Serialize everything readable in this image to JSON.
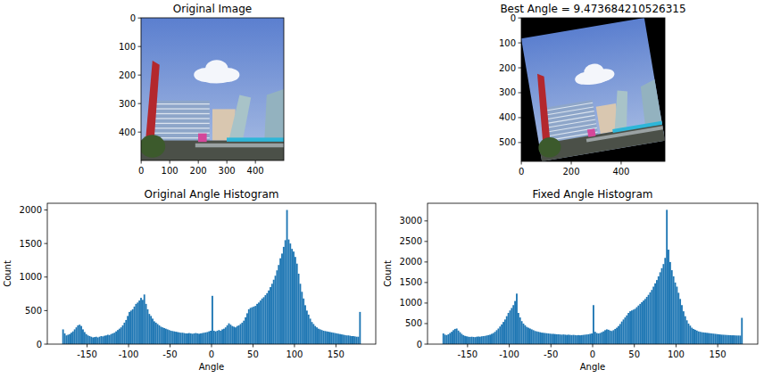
{
  "chart_data": [
    {
      "type": "image",
      "title": "Original Image",
      "xlim": [
        -0.5,
        499.5
      ],
      "ylim": [
        499.5,
        -0.5
      ],
      "xticks": [
        0,
        100,
        200,
        300,
        400
      ],
      "yticks": [
        0,
        100,
        200,
        300,
        400
      ]
    },
    {
      "type": "image",
      "title": "Best Angle = 9.473684210526315",
      "xlim": [
        -0.5,
        575.5
      ],
      "ylim": [
        575.5,
        -0.5
      ],
      "xticks": [
        0,
        200,
        400
      ],
      "yticks": [
        0,
        100,
        200,
        300,
        400,
        500
      ]
    },
    {
      "type": "histogram",
      "title": "Original Angle Histogram",
      "xlabel": "Angle",
      "ylabel": "Count",
      "color": "#1f77b4",
      "xlim": [
        -198,
        198
      ],
      "ylim": [
        0,
        2100
      ],
      "xticks": [
        -150,
        -100,
        -50,
        0,
        50,
        100,
        150
      ],
      "yticks": [
        0,
        500,
        1000,
        1500,
        2000
      ],
      "bins": [
        -180,
        -178,
        -176,
        -174,
        -172,
        -170,
        -168,
        -166,
        -164,
        -162,
        -160,
        -158,
        -156,
        -154,
        -152,
        -150,
        -148,
        -146,
        -144,
        -142,
        -140,
        -138,
        -136,
        -134,
        -132,
        -130,
        -128,
        -126,
        -124,
        -122,
        -120,
        -118,
        -116,
        -114,
        -112,
        -110,
        -108,
        -106,
        -104,
        -102,
        -100,
        -98,
        -96,
        -94,
        -92,
        -90,
        -88,
        -86,
        -84,
        -82,
        -80,
        -78,
        -76,
        -74,
        -72,
        -70,
        -68,
        -66,
        -64,
        -62,
        -60,
        -58,
        -56,
        -54,
        -52,
        -50,
        -48,
        -46,
        -44,
        -42,
        -40,
        -38,
        -36,
        -34,
        -32,
        -30,
        -28,
        -26,
        -24,
        -22,
        -20,
        -18,
        -16,
        -14,
        -12,
        -10,
        -8,
        -6,
        -4,
        -2,
        0,
        2,
        4,
        6,
        8,
        10,
        12,
        14,
        16,
        18,
        20,
        22,
        24,
        26,
        28,
        30,
        32,
        34,
        36,
        38,
        40,
        42,
        44,
        46,
        48,
        50,
        52,
        54,
        56,
        58,
        60,
        62,
        64,
        66,
        68,
        70,
        72,
        74,
        76,
        78,
        80,
        82,
        84,
        86,
        88,
        90,
        92,
        94,
        96,
        98,
        100,
        102,
        104,
        106,
        108,
        110,
        112,
        114,
        116,
        118,
        120,
        122,
        124,
        126,
        128,
        130,
        132,
        134,
        136,
        138,
        140,
        142,
        144,
        146,
        148,
        150,
        152,
        154,
        156,
        158,
        160,
        162,
        164,
        166,
        168,
        170,
        172,
        174,
        176,
        178,
        180
      ],
      "counts": [
        220,
        160,
        130,
        140,
        150,
        170,
        190,
        220,
        250,
        280,
        290,
        270,
        220,
        180,
        150,
        130,
        120,
        110,
        100,
        105,
        110,
        100,
        110,
        120,
        115,
        125,
        130,
        140,
        135,
        150,
        160,
        170,
        190,
        210,
        230,
        250,
        280,
        320,
        360,
        420,
        480,
        500,
        520,
        560,
        600,
        620,
        650,
        690,
        660,
        740,
        600,
        520,
        450,
        420,
        380,
        340,
        320,
        300,
        280,
        260,
        250,
        240,
        230,
        220,
        210,
        200,
        195,
        190,
        185,
        180,
        175,
        170,
        170,
        165,
        160,
        160,
        165,
        160,
        155,
        160,
        165,
        160,
        155,
        160,
        165,
        170,
        175,
        180,
        190,
        200,
        720,
        200,
        190,
        200,
        210,
        200,
        220,
        230,
        250,
        280,
        310,
        290,
        270,
        260,
        250,
        270,
        280,
        300,
        320,
        350,
        400,
        460,
        520,
        540,
        550,
        560,
        570,
        600,
        620,
        650,
        680,
        700,
        730,
        760,
        800,
        850,
        900,
        960,
        1020,
        1100,
        1180,
        1280,
        1350,
        1450,
        1550,
        2000,
        1560,
        1500,
        1420,
        1380,
        1300,
        1200,
        1050,
        900,
        780,
        680,
        580,
        500,
        440,
        380,
        330,
        300,
        270,
        250,
        230,
        220,
        210,
        200,
        195,
        190,
        185,
        180,
        175,
        170,
        165,
        160,
        155,
        150,
        145,
        140,
        135,
        130,
        130,
        125,
        120,
        120,
        115,
        110,
        110,
        480
      ]
    },
    {
      "type": "histogram",
      "title": "Fixed Angle Histogram",
      "xlabel": "Angle",
      "ylabel": "Count",
      "color": "#1f77b4",
      "xlim": [
        -198,
        198
      ],
      "ylim": [
        0,
        3430
      ],
      "xticks": [
        -150,
        -100,
        -50,
        0,
        50,
        100,
        150
      ],
      "yticks": [
        0,
        500,
        1000,
        1500,
        2000,
        2500,
        3000
      ],
      "bins": [
        -180,
        -178,
        -176,
        -174,
        -172,
        -170,
        -168,
        -166,
        -164,
        -162,
        -160,
        -158,
        -156,
        -154,
        -152,
        -150,
        -148,
        -146,
        -144,
        -142,
        -140,
        -138,
        -136,
        -134,
        -132,
        -130,
        -128,
        -126,
        -124,
        -122,
        -120,
        -118,
        -116,
        -114,
        -112,
        -110,
        -108,
        -106,
        -104,
        -102,
        -100,
        -98,
        -96,
        -94,
        -92,
        -90,
        -88,
        -86,
        -84,
        -82,
        -80,
        -78,
        -76,
        -74,
        -72,
        -70,
        -68,
        -66,
        -64,
        -62,
        -60,
        -58,
        -56,
        -54,
        -52,
        -50,
        -48,
        -46,
        -44,
        -42,
        -40,
        -38,
        -36,
        -34,
        -32,
        -30,
        -28,
        -26,
        -24,
        -22,
        -20,
        -18,
        -16,
        -14,
        -12,
        -10,
        -8,
        -6,
        -4,
        -2,
        0,
        2,
        4,
        6,
        8,
        10,
        12,
        14,
        16,
        18,
        20,
        22,
        24,
        26,
        28,
        30,
        32,
        34,
        36,
        38,
        40,
        42,
        44,
        46,
        48,
        50,
        52,
        54,
        56,
        58,
        60,
        62,
        64,
        66,
        68,
        70,
        72,
        74,
        76,
        78,
        80,
        82,
        84,
        86,
        88,
        90,
        92,
        94,
        96,
        98,
        100,
        102,
        104,
        106,
        108,
        110,
        112,
        114,
        116,
        118,
        120,
        122,
        124,
        126,
        128,
        130,
        132,
        134,
        136,
        138,
        140,
        142,
        144,
        146,
        148,
        150,
        152,
        154,
        156,
        158,
        160,
        162,
        164,
        166,
        168,
        170,
        172,
        174,
        176,
        178,
        180
      ],
      "counts": [
        260,
        230,
        220,
        240,
        270,
        300,
        340,
        370,
        380,
        330,
        290,
        250,
        220,
        200,
        190,
        180,
        175,
        180,
        175,
        170,
        180,
        185,
        180,
        190,
        195,
        200,
        210,
        220,
        230,
        250,
        270,
        300,
        340,
        380,
        430,
        480,
        540,
        600,
        680,
        760,
        820,
        880,
        950,
        1050,
        1230,
        760,
        650,
        560,
        500,
        460,
        420,
        400,
        380,
        360,
        340,
        320,
        310,
        300,
        290,
        280,
        275,
        270,
        265,
        260,
        255,
        250,
        250,
        245,
        240,
        240,
        235,
        230,
        235,
        230,
        225,
        230,
        225,
        220,
        225,
        220,
        215,
        220,
        215,
        220,
        225,
        230,
        235,
        240,
        250,
        260,
        950,
        300,
        270,
        260,
        270,
        290,
        310,
        340,
        360,
        350,
        330,
        320,
        340,
        370,
        400,
        440,
        490,
        550,
        600,
        650,
        700,
        760,
        800,
        820,
        840,
        860,
        900,
        940,
        980,
        1020,
        1060,
        1100,
        1150,
        1200,
        1260,
        1320,
        1400,
        1480,
        1560,
        1650,
        1750,
        1850,
        1950,
        2100,
        3270,
        2300,
        2000,
        1800,
        1650,
        1500,
        1400,
        1250,
        1100,
        950,
        800,
        680,
        580,
        500,
        450,
        400,
        370,
        350,
        330,
        310,
        300,
        290,
        285,
        280,
        275,
        270,
        265,
        260,
        255,
        250,
        245,
        240,
        235,
        230,
        228,
        225,
        222,
        220,
        218,
        215,
        215,
        212,
        210,
        210,
        208,
        640
      ]
    }
  ]
}
